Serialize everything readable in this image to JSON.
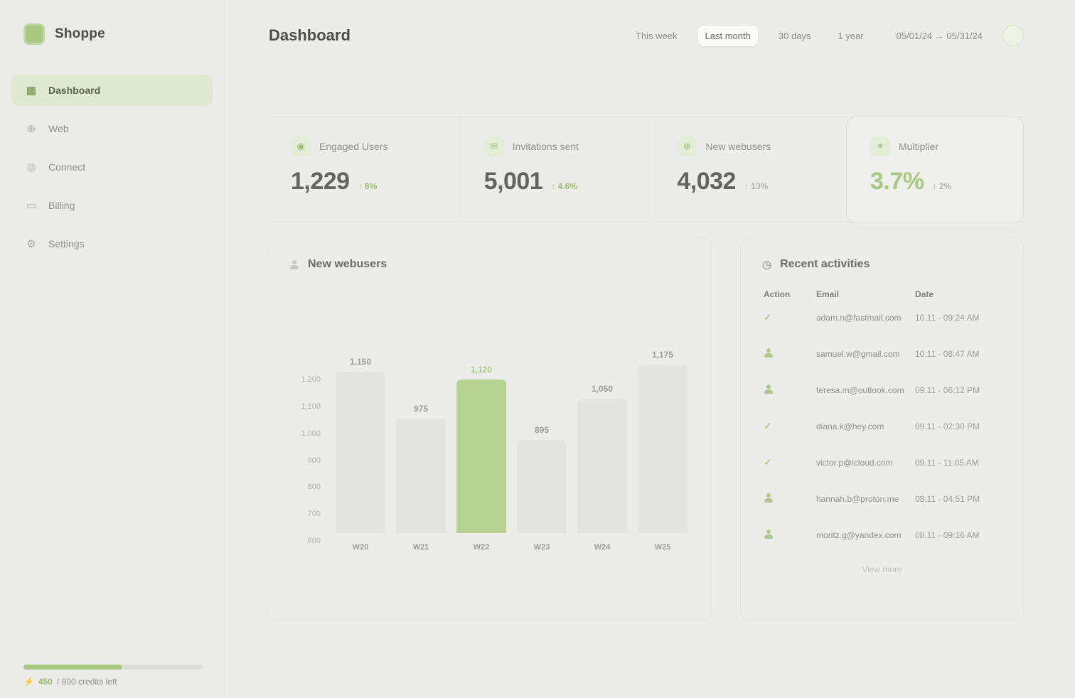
{
  "app": {
    "name": "Shoppe"
  },
  "colors": {
    "accent": "#a9c880",
    "accent_bg": "#e4eed6",
    "nav_active_bg": "#dfe9cf",
    "green_text": "#9cbd6e",
    "bar_gray": "#e3e3e1",
    "bar_highlight": "#b7d190",
    "background": "#ececea",
    "border": "#e2e2df"
  },
  "sidebar": {
    "items": [
      {
        "label": "Dashboard",
        "icon": "grid-icon",
        "active": true
      },
      {
        "label": "Web",
        "icon": "globe-icon",
        "active": false
      },
      {
        "label": "Connect",
        "icon": "target-icon",
        "active": false
      },
      {
        "label": "Billing",
        "icon": "card-icon",
        "active": false
      },
      {
        "label": "Settings",
        "icon": "gear-icon",
        "active": false
      }
    ],
    "usage": {
      "progress_pct": 55,
      "used_label": "450",
      "remaining_label": "/ 800 credits left"
    }
  },
  "header": {
    "title": "Dashboard",
    "filters": [
      {
        "label": "This week",
        "selected": false
      },
      {
        "label": "Last month",
        "selected": true
      },
      {
        "label": "30 days",
        "selected": false
      },
      {
        "label": "1 year",
        "selected": false
      }
    ],
    "date_range": "05/01/24 → 05/31/24"
  },
  "stats": {
    "cards": [
      {
        "icon": "users-icon",
        "label": "Engaged Users",
        "value": "1,229",
        "delta": "↑ 8%",
        "delta_color": "green",
        "boxed": false
      },
      {
        "icon": "mail-icon",
        "label": "Invitations sent",
        "value": "5,001",
        "delta": "↑ 4.6%",
        "delta_color": "green",
        "boxed": false
      },
      {
        "icon": "user-plus-icon",
        "label": "New webusers",
        "value": "4,032",
        "delta": "↓ 13%",
        "delta_color": "gray",
        "boxed": false
      },
      {
        "icon": "spark-icon",
        "label": "Multiplier",
        "value": "3.7%",
        "value_color": "green",
        "delta": "↑ 2%",
        "delta_color": "gray",
        "boxed": true
      }
    ]
  },
  "chart_data": {
    "type": "bar",
    "title": "New webusers",
    "categories": [
      "W20",
      "W21",
      "W22",
      "W23",
      "W24",
      "W25"
    ],
    "values": [
      1150,
      975,
      1120,
      895,
      1050,
      1175
    ],
    "value_labels": [
      "1,150",
      "975",
      "1,120",
      "895",
      "1,050",
      "1,175"
    ],
    "highlight_index": 2,
    "y_ticks": [
      1200,
      1100,
      1000,
      900,
      800,
      700,
      600
    ],
    "ylim": [
      550,
      1250
    ],
    "xlabel": "",
    "ylabel": "",
    "grid": false,
    "legend": false
  },
  "activities": {
    "title": "Recent activities",
    "columns": [
      "Action",
      "Email",
      "Date"
    ],
    "rows": [
      {
        "action": "check",
        "email": "adam.n@fastmail.com",
        "date": "10.11 - 09:24 AM"
      },
      {
        "action": "user",
        "email": "samuel.w@gmail.com",
        "date": "10.11 - 08:47 AM"
      },
      {
        "action": "user",
        "email": "teresa.m@outlook.com",
        "date": "09.11 - 06:12 PM"
      },
      {
        "action": "check",
        "email": "diana.k@hey.com",
        "date": "09.11 - 02:30 PM"
      },
      {
        "action": "check",
        "email": "victor.p@icloud.com",
        "date": "09.11 - 11:05 AM"
      },
      {
        "action": "user",
        "email": "hannah.b@proton.me",
        "date": "08.11 - 04:51 PM"
      },
      {
        "action": "user",
        "email": "moritz.g@yandex.com",
        "date": "08.11 - 09:16 AM"
      }
    ],
    "view_more_label": "View more"
  }
}
